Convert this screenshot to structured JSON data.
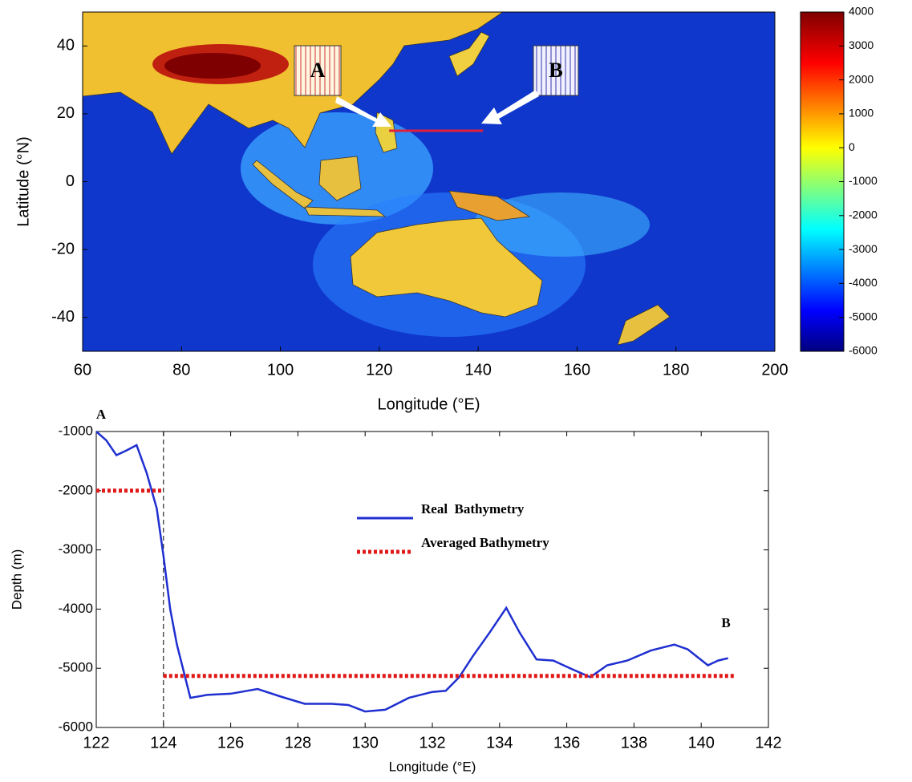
{
  "chart_data": [
    {
      "type": "map",
      "xlabel": "Longitude (°E)",
      "ylabel": "Latitude (°N)",
      "xlim": [
        60,
        200
      ],
      "xticks": [
        60,
        80,
        100,
        120,
        140,
        160,
        180,
        200
      ],
      "ylim": [
        -50,
        50
      ],
      "yticks": [
        -40,
        -20,
        0,
        20,
        40
      ],
      "colorbar": {
        "lim": [
          -6000,
          4000
        ],
        "ticks": [
          -6000,
          -5000,
          -4000,
          -3000,
          -2000,
          -1000,
          0,
          1000,
          2000,
          3000,
          4000
        ]
      },
      "section": {
        "x": [
          122,
          141
        ],
        "y": [
          15,
          15
        ],
        "color": "#e0203a"
      },
      "annotations": [
        "A",
        "B"
      ]
    },
    {
      "type": "line",
      "xlabel": "Longitude (°E)",
      "ylabel": "Depth (m)",
      "xlim": [
        122,
        142
      ],
      "xticks": [
        122,
        124,
        126,
        128,
        130,
        132,
        134,
        136,
        138,
        140,
        142
      ],
      "ylim": [
        -6000,
        -1000
      ],
      "yticks": [
        -6000,
        -5000,
        -4000,
        -3000,
        -2000,
        -1000
      ],
      "vline": 124,
      "legend": "center",
      "annotations": [
        "A",
        "B"
      ],
      "series": [
        {
          "name": "Real  Bathymetry",
          "color": "#1f2fd0",
          "style": "solid",
          "x": [
            122.0,
            122.3,
            122.6,
            122.9,
            123.2,
            123.5,
            123.8,
            124.0,
            124.2,
            124.4,
            124.8,
            125.3,
            126.0,
            126.8,
            127.5,
            128.2,
            129.0,
            129.5,
            130.0,
            130.6,
            131.3,
            132.0,
            132.4,
            132.8,
            133.2,
            133.7,
            134.2,
            134.6,
            135.1,
            135.6,
            136.1,
            136.7,
            137.2,
            137.8,
            138.5,
            139.2,
            139.6,
            140.2,
            140.5,
            140.8
          ],
          "values": [
            -1000,
            -1150,
            -1400,
            -1320,
            -1230,
            -1700,
            -2300,
            -3100,
            -4000,
            -4600,
            -5500,
            -5450,
            -5430,
            -5350,
            -5480,
            -5600,
            -5600,
            -5620,
            -5730,
            -5700,
            -5500,
            -5400,
            -5380,
            -5150,
            -4800,
            -4400,
            -3980,
            -4400,
            -4850,
            -4870,
            -5000,
            -5150,
            -4950,
            -4870,
            -4700,
            -4600,
            -4680,
            -4950,
            -4870,
            -4830
          ]
        },
        {
          "name": "Averaged Bathymetry",
          "color": "#e01818",
          "style": "dotted",
          "x": [
            122,
            124,
            124,
            124,
            141
          ],
          "values": [
            -2000,
            -2000,
            null,
            -5130,
            -5130
          ]
        }
      ]
    }
  ]
}
